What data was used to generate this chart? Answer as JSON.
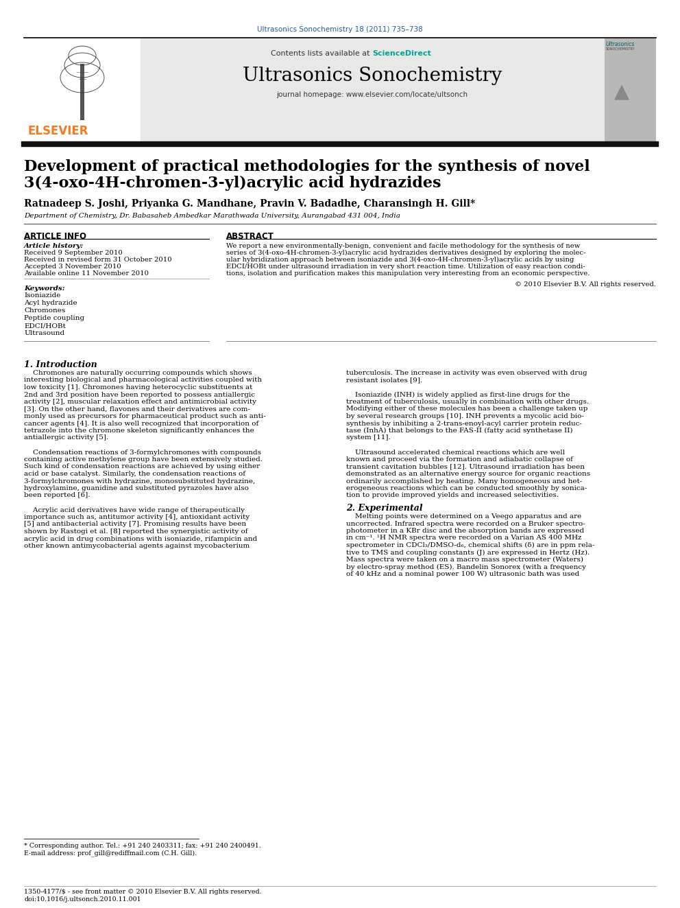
{
  "journal_ref": "Ultrasonics Sonochemistry 18 (2011) 735–738",
  "journal_name": "Ultrasonics Sonochemistry",
  "journal_homepage": "journal homepage: www.elsevier.com/locate/ultsonch",
  "elsevier_color": "#f47920",
  "title_line1": "Development of practical methodologies for the synthesis of novel",
  "title_line2": "3(4-oxo-4H-chromen-3-yl)acrylic acid hydrazides",
  "authors": "Ratnadeep S. Joshi, Priyanka G. Mandhane, Pravin V. Badadhe, Charansingh H. Gill*",
  "affiliation": "Department of Chemistry, Dr. Babasaheb Ambedkar Marathwada University, Aurangabad 431 004, India",
  "article_info_title": "ARTICLE INFO",
  "abstract_title": "ABSTRACT",
  "article_history_label": "Article history:",
  "received1": "Received 9 September 2010",
  "received2": "Received in revised form 31 October 2010",
  "accepted": "Accepted 3 November 2010",
  "available": "Available online 11 November 2010",
  "keywords_label": "Keywords:",
  "keywords": [
    "Isoniazide",
    "Acyl hydrazide",
    "Chromones",
    "Peptide coupling",
    "EDCI/HOBt",
    "Ultrasound"
  ],
  "abstract_copyright": "© 2010 Elsevier B.V. All rights reserved.",
  "intro_title": "1. Introduction",
  "section2_title": "2. Experimental",
  "footnote1": "* Corresponding author. Tel.: +91 240 2403311; fax: +91 240 2400491.",
  "footnote2": "E-mail address: prof_gill@rediffmail.com (C.H. Gill).",
  "footer1": "1350-4177/$ - see front matter © 2010 Elsevier B.V. All rights reserved.",
  "footer2": "doi:10.1016/j.ultsonch.2010.11.001",
  "link_color": "#2b5797",
  "sciencedirect_color": "#00a499",
  "header_bg": "#e8e8e8",
  "abstract_lines": [
    "We report a new environmentally-benign, convenient and facile methodology for the synthesis of new",
    "series of 3(4-oxo-4H-chromen-3-yl)acrylic acid hydrazides derivatives designed by exploring the molec-",
    "ular hybridization approach between isoniazide and 3(4-oxo-4H-chromen-3-yl)acrylic acids by using",
    "EDCI/HOBt under ultrasound irradiation in very short reaction time. Utilization of easy reaction condi-",
    "tions, isolation and purification makes this manipulation very interesting from an economic perspective."
  ],
  "intro_col1_lines": [
    "    Chromones are naturally occurring compounds which shows",
    "interesting biological and pharmacological activities coupled with",
    "low toxicity [1]. Chromones having heterocyclic substituents at",
    "2nd and 3rd position have been reported to possess antiallergic",
    "activity [2], muscular relaxation effect and antimicrobial activity",
    "[3]. On the other hand, flavones and their derivatives are com-",
    "monly used as precursors for pharmaceutical product such as anti-",
    "cancer agents [4]. It is also well recognized that incorporation of",
    "tetrazole into the chromone skeleton significantly enhances the",
    "antiallergic activity [5].",
    "",
    "    Condensation reactions of 3-formylchromones with compounds",
    "containing active methylene group have been extensively studied.",
    "Such kind of condensation reactions are achieved by using either",
    "acid or base catalyst. Similarly, the condensation reactions of",
    "3-formylchromones with hydrazine, monosubstituted hydrazine,",
    "hydroxylamine, guanidine and substituted pyrazoles have also",
    "been reported [6].",
    "",
    "    Acrylic acid derivatives have wide range of therapeutically",
    "importance such as, antitumor activity [4], antioxidant activity",
    "[5] and antibacterial activity [7]. Promising results have been",
    "shown by Rastogi et al. [8] reported the synergistic activity of",
    "acrylic acid in drug combinations with isoniazide, rifampicin and",
    "other known antimycobacterial agents against mycobacterium"
  ],
  "intro_col2_lines": [
    "tuberculosis. The increase in activity was even observed with drug",
    "resistant isolates [9].",
    "",
    "    Isoniazide (INH) is widely applied as first-line drugs for the",
    "treatment of tuberculosis, usually in combination with other drugs.",
    "Modifying either of these molecules has been a challenge taken up",
    "by several research groups [10]. INH prevents a mycolic acid bio-",
    "synthesis by inhibiting a 2-trans-enoyl-acyl carrier protein reduc-",
    "tase (InhA) that belongs to the FAS-II (fatty acid synthetase II)",
    "system [11].",
    "",
    "    Ultrasound accelerated chemical reactions which are well",
    "known and proceed via the formation and adiabatic collapse of",
    "transient cavitation bubbles [12]. Ultrasound irradiation has been",
    "demonstrated as an alternative energy source for organic reactions",
    "ordinarily accomplished by heating. Many homogeneous and het-",
    "erogeneous reactions which can be conducted smoothly by sonica-",
    "tion to provide improved yields and increased selectivities."
  ],
  "sec2_col2_lines": [
    "    Melting points were determined on a Veego apparatus and are",
    "uncorrected. Infrared spectra were recorded on a Bruker spectro-",
    "photometer in a KBr disc and the absorption bands are expressed",
    "in cm⁻¹. ¹H NMR spectra were recorded on a Varian AS 400 MHz",
    "spectrometer in CDCl₃/DMSO-d₆, chemical shifts (δ) are in ppm rela-",
    "tive to TMS and coupling constants (J) are expressed in Hertz (Hz).",
    "Mass spectra were taken on a macro mass spectrometer (Waters)",
    "by electro-spray method (ES). Bandelin Sonorex (with a frequency",
    "of 40 kHz and a nominal power 100 W) ultrasonic bath was used"
  ]
}
